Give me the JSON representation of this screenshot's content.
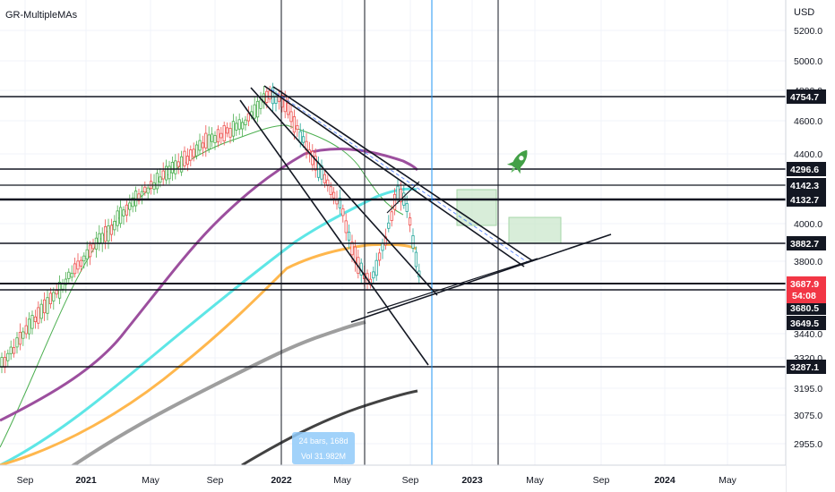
{
  "chart_data": {
    "type": "line",
    "indicator_title": "GR-MultipleMAs",
    "currency": "USD",
    "y_range": [
      2880,
      5330
    ],
    "y_ticks": [
      "5200.0",
      "5000.0",
      "4800.0",
      "4600.0",
      "4400.0",
      "4000.0",
      "3800.0",
      "3440.0",
      "3320.0",
      "3195.0",
      "3075.0",
      "2955.0"
    ],
    "x_ticks": [
      "Sep",
      "2021",
      "May",
      "Sep",
      "2022",
      "May",
      "Sep",
      "2023",
      "May",
      "Sep",
      "2024",
      "May"
    ],
    "price_levels": [
      {
        "label": "4754.7",
        "value": 4754.7,
        "style": "dark"
      },
      {
        "label": "4296.6",
        "value": 4296.6,
        "style": "dark"
      },
      {
        "label": "4142.3",
        "value": 4142.3,
        "style": "dark"
      },
      {
        "label": "4132.7",
        "value": 4132.7,
        "style": "dark"
      },
      {
        "label": "3882.7",
        "value": 3882.7,
        "style": "dark"
      },
      {
        "label": "3680.5",
        "value": 3680.5,
        "style": "dark"
      },
      {
        "label": "3649.5",
        "value": 3649.5,
        "style": "dark"
      },
      {
        "label": "3287.1",
        "value": 3287.1,
        "style": "dark"
      }
    ],
    "last_price": {
      "value": 3687.9,
      "label": "3687.9",
      "countdown": "54:08",
      "color": "#f23645"
    },
    "measure_box": {
      "line1": "24 bars, 168d",
      "line2": "Vol 31.982M"
    },
    "moving_averages": [
      {
        "color": "#4caf50"
      },
      {
        "color": "#5ee6e6"
      },
      {
        "color": "#ffb74d"
      },
      {
        "color": "#9c4f9e"
      },
      {
        "color": "#9e9e9e"
      },
      {
        "color": "#424242"
      }
    ],
    "colors": {
      "up": "#26a69a",
      "up_alt": "#4caf50",
      "down": "#ef5350",
      "grid": "#f0f3fa",
      "accent": "#2962ff"
    },
    "annotation_icon": "rocket-icon"
  }
}
